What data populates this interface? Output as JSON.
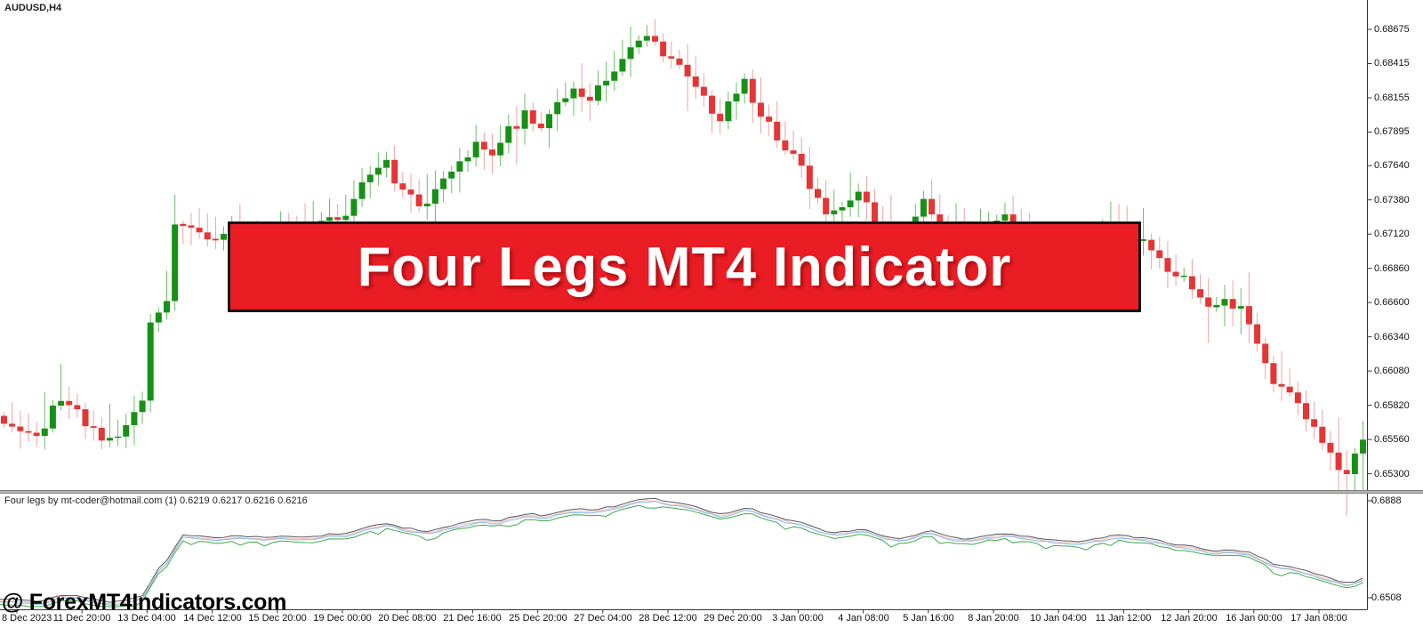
{
  "window": {
    "symbol_label": "AUDUSD,H4"
  },
  "banner": {
    "text": "Four Legs MT4 Indicator",
    "bg_color": "#ea1c24",
    "border_color": "#141414",
    "text_color": "#ffffff"
  },
  "watermark": {
    "text": "@ ForexMT4Indicators.com"
  },
  "indicator": {
    "label": "Four legs by mt-coder@hotmail.com (1) 0.6219 0.6217 0.6216 0.6216",
    "axis_ticks": [
      "0.6888",
      "0.6508"
    ]
  },
  "main_chart": {
    "price_axis_ticks": [
      "0.68675",
      "0.68415",
      "0.68155",
      "0.67895",
      "0.67640",
      "0.67380",
      "0.67120",
      "0.66860",
      "0.66600",
      "0.66340",
      "0.66080",
      "0.65820",
      "0.65560",
      "0.65300"
    ]
  },
  "time_axis": {
    "labels": [
      "8 Dec 2023",
      "11 Dec 20:00",
      "13 Dec 04:00",
      "14 Dec 12:00",
      "15 Dec 20:00",
      "19 Dec 00:00",
      "20 Dec 08:00",
      "21 Dec 16:00",
      "25 Dec 20:00",
      "27 Dec 04:00",
      "28 Dec 12:00",
      "29 Dec 20:00",
      "3 Jan 00:00",
      "4 Jan 08:00",
      "5 Jan 16:00",
      "8 Jan 20:00",
      "10 Jan 04:00",
      "11 Jan 12:00",
      "12 Jan 20:00",
      "16 Jan 00:00",
      "17 Jan 08:00"
    ]
  },
  "chart_data": {
    "type": "candlestick",
    "symbol": "AUDUSD",
    "timeframe": "H4",
    "title": "AUDUSD,H4 with Four Legs indicator subwindow",
    "price_axis_range": [
      0.653,
      0.68675
    ],
    "price_axis_tick_values": [
      0.68675,
      0.68415,
      0.68155,
      0.67895,
      0.6764,
      0.6738,
      0.6712,
      0.6686,
      0.666,
      0.6634,
      0.6608,
      0.6582,
      0.6556,
      0.653
    ],
    "time_tick_labels": [
      "8 Dec 2023",
      "11 Dec 20:00",
      "13 Dec 04:00",
      "14 Dec 12:00",
      "15 Dec 20:00",
      "19 Dec 00:00",
      "20 Dec 08:00",
      "21 Dec 16:00",
      "25 Dec 20:00",
      "27 Dec 04:00",
      "28 Dec 12:00",
      "29 Dec 20:00",
      "3 Jan 00:00",
      "4 Jan 08:00",
      "5 Jan 16:00",
      "8 Jan 20:00",
      "10 Jan 04:00",
      "11 Jan 12:00",
      "12 Jan 20:00",
      "16 Jan 00:00",
      "17 Jan 08:00"
    ],
    "candle_count": 168,
    "close_anchors": [
      [
        0,
        0.6572
      ],
      [
        2,
        0.6562
      ],
      [
        4,
        0.6558
      ],
      [
        6,
        0.6578
      ],
      [
        8,
        0.6585
      ],
      [
        10,
        0.6568
      ],
      [
        12,
        0.6556
      ],
      [
        14,
        0.6562
      ],
      [
        16,
        0.6575
      ],
      [
        17,
        0.6585
      ],
      [
        18,
        0.6645
      ],
      [
        19,
        0.6652
      ],
      [
        20,
        0.6658
      ],
      [
        21,
        0.6718
      ],
      [
        22,
        0.6722
      ],
      [
        25,
        0.6708
      ],
      [
        28,
        0.6718
      ],
      [
        31,
        0.6712
      ],
      [
        34,
        0.6716
      ],
      [
        37,
        0.6712
      ],
      [
        40,
        0.6722
      ],
      [
        42,
        0.6728
      ],
      [
        44,
        0.6748
      ],
      [
        46,
        0.6762
      ],
      [
        47,
        0.6772
      ],
      [
        48,
        0.6752
      ],
      [
        50,
        0.674
      ],
      [
        52,
        0.6734
      ],
      [
        54,
        0.6752
      ],
      [
        56,
        0.6765
      ],
      [
        58,
        0.678
      ],
      [
        60,
        0.6774
      ],
      [
        62,
        0.679
      ],
      [
        64,
        0.6802
      ],
      [
        66,
        0.6796
      ],
      [
        68,
        0.6812
      ],
      [
        70,
        0.6822
      ],
      [
        72,
        0.6816
      ],
      [
        74,
        0.6832
      ],
      [
        76,
        0.6846
      ],
      [
        78,
        0.6858
      ],
      [
        79,
        0.6864
      ],
      [
        80,
        0.6858
      ],
      [
        81,
        0.685
      ],
      [
        83,
        0.6842
      ],
      [
        85,
        0.6826
      ],
      [
        87,
        0.6804
      ],
      [
        88,
        0.6796
      ],
      [
        89,
        0.6814
      ],
      [
        91,
        0.6826
      ],
      [
        93,
        0.6802
      ],
      [
        95,
        0.6786
      ],
      [
        97,
        0.6772
      ],
      [
        99,
        0.6748
      ],
      [
        101,
        0.6724
      ],
      [
        103,
        0.6736
      ],
      [
        105,
        0.6746
      ],
      [
        107,
        0.672
      ],
      [
        109,
        0.6706
      ],
      [
        111,
        0.6712
      ],
      [
        113,
        0.6736
      ],
      [
        115,
        0.6714
      ],
      [
        118,
        0.6702
      ],
      [
        121,
        0.6718
      ],
      [
        123,
        0.6724
      ],
      [
        125,
        0.6714
      ],
      [
        128,
        0.6702
      ],
      [
        131,
        0.6696
      ],
      [
        134,
        0.6706
      ],
      [
        136,
        0.672
      ],
      [
        138,
        0.6714
      ],
      [
        140,
        0.6708
      ],
      [
        141,
        0.6696
      ],
      [
        143,
        0.6686
      ],
      [
        145,
        0.6678
      ],
      [
        146,
        0.6668
      ],
      [
        148,
        0.6656
      ],
      [
        150,
        0.6662
      ],
      [
        152,
        0.6656
      ],
      [
        154,
        0.6632
      ],
      [
        155,
        0.6618
      ],
      [
        156,
        0.6602
      ],
      [
        158,
        0.6592
      ],
      [
        160,
        0.6572
      ],
      [
        162,
        0.6556
      ],
      [
        163,
        0.6544
      ],
      [
        164,
        0.6534
      ],
      [
        165,
        0.653
      ],
      [
        166,
        0.6548
      ],
      [
        167,
        0.6556
      ]
    ],
    "indicator_subwindow": {
      "type": "line",
      "name": "Four legs",
      "current_values": [
        0.6219,
        0.6217,
        0.6216,
        0.6216
      ],
      "axis_max": 0.6888,
      "axis_min": 0.6508,
      "series": [
        {
          "name": "leg1-dark",
          "color": "#555555",
          "offset": 0.0035
        },
        {
          "name": "leg2-pink",
          "color": "#f0bcbc",
          "offset": 0.0028
        },
        {
          "name": "leg3-blue",
          "color": "#85b9e8",
          "offset": 0.0024
        },
        {
          "name": "leg4-green",
          "color": "#3fa84a",
          "offset": 0.0014
        }
      ]
    },
    "colors": {
      "candle_up": "#169116",
      "candle_down": "#e53535",
      "wick_up": "#6dbb6d",
      "wick_down": "#f2a0a0",
      "axis_line": "#333333",
      "background": "#ffffff"
    },
    "layout": {
      "grid": false,
      "price_axis_side": "right",
      "subwindow": "Four legs indicator below main chart"
    }
  }
}
